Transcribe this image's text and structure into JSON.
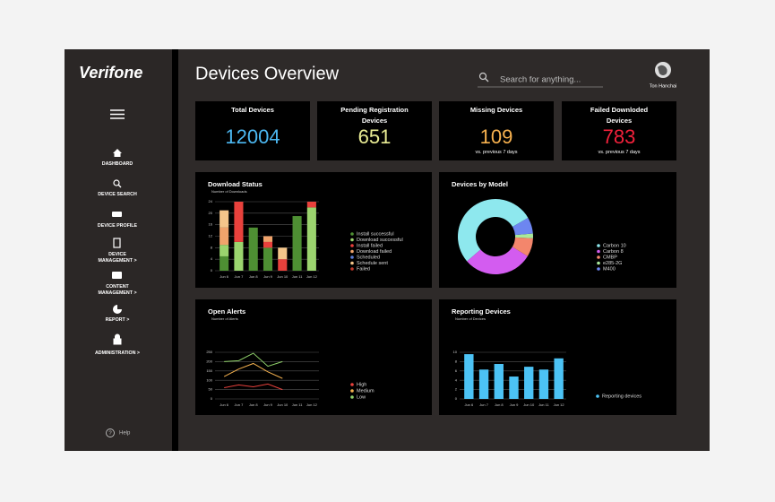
{
  "sidebar": {
    "logo": "Verifone",
    "nav": [
      "DASHBOARD",
      "DEVICE SEARCH",
      "DEVICE PROFILE",
      "DEVICE MANAGEMENT >",
      "CONTENT MANAGEMENT >",
      "REPORT >",
      "ADMINISTRATION >"
    ],
    "help": "Help"
  },
  "header": {
    "title": "Devices Overview",
    "search_placeholder": "Search for anything...",
    "user": "Ton Hanchai"
  },
  "kpis": [
    {
      "label": "Total Devices",
      "value": 12004,
      "color": "#4cb8f2"
    },
    {
      "label": "Pending Registration Devices",
      "value": 651,
      "color": "#e9ec94"
    },
    {
      "label": "Missing Devices",
      "value": 109,
      "note": "vs. previous 7 days",
      "color": "#f7b14f"
    },
    {
      "label": "Failed Downloded Devices",
      "value": 783,
      "note": "vs. previous 7 days",
      "color": "#f2213b"
    }
  ],
  "chart_data": [
    {
      "type": "bar",
      "stacked": true,
      "title": "Download Status",
      "subtitle": "Number of Downloads",
      "categories": [
        "Jun 6",
        "Jun 7",
        "Jun 8",
        "Jun 9",
        "Jun 10",
        "Jun 11",
        "Jun 12"
      ],
      "series": [
        {
          "name": "Install successful",
          "color": "#4e8f33",
          "values": [
            5,
            0,
            15,
            8,
            0,
            19,
            0
          ]
        },
        {
          "name": "Download successful",
          "color": "#9bd46e",
          "values": [
            4,
            10,
            0,
            0,
            0,
            0,
            22
          ]
        },
        {
          "name": "Install failed",
          "color": "#e8413c",
          "values": [
            0,
            14,
            0,
            2,
            4,
            0,
            2
          ]
        },
        {
          "name": "Download failed",
          "color": "#f0a36b",
          "values": [
            6,
            0,
            0,
            2,
            0,
            0,
            0
          ]
        },
        {
          "name": "Scheduled",
          "color": "#5b7bd5",
          "values": [
            0,
            0,
            0,
            0,
            0,
            0,
            0
          ]
        },
        {
          "name": "Schedule sent",
          "color": "#f5c68a",
          "values": [
            6,
            0,
            0,
            0,
            4,
            0,
            0
          ]
        },
        {
          "name": "Failed",
          "color": "#c0392b",
          "values": [
            0,
            0,
            0,
            0,
            0,
            0,
            0
          ]
        }
      ],
      "ylim": [
        0,
        24
      ],
      "yticks": [
        0,
        4,
        8,
        12,
        16,
        20,
        24
      ],
      "grid": true,
      "legend": "right"
    },
    {
      "type": "pie",
      "donut": true,
      "title": "Devices by Model",
      "categories": [
        "Carbon 10",
        "Carbon 8",
        "CMBP",
        "e285-2G",
        "M400"
      ],
      "values": [
        53,
        30,
        8,
        2,
        7
      ],
      "colors": [
        "#8ee8ee",
        "#d35cf0",
        "#f3866c",
        "#a9e89a",
        "#6d86f0"
      ],
      "legend": "right"
    },
    {
      "type": "line",
      "title": "Open Alerts",
      "subtitle": "Number of Alerts",
      "categories": [
        "Jun 6",
        "Jun 7",
        "Jun 8",
        "Jun 9",
        "Jun 10",
        "Jun 11",
        "Jun 12"
      ],
      "series": [
        {
          "name": "High",
          "color": "#e8413c",
          "values": [
            60,
            75,
            65,
            80,
            50,
            null,
            null
          ]
        },
        {
          "name": "Medium",
          "color": "#f3b04e",
          "values": [
            120,
            160,
            190,
            145,
            110,
            null,
            null
          ]
        },
        {
          "name": "Low",
          "color": "#8fd06a",
          "values": [
            200,
            205,
            245,
            175,
            200,
            null,
            null
          ]
        }
      ],
      "ylim": [
        0,
        250
      ],
      "yticks": [
        0,
        50,
        100,
        150,
        200,
        250
      ],
      "grid": true,
      "legend": "right"
    },
    {
      "type": "bar",
      "title": "Reporting Devices",
      "subtitle": "Number of Devices",
      "categories": [
        "Jun 6",
        "Jun 7",
        "Jun 8",
        "Jun 9",
        "Jun 10",
        "Jun 11",
        "Jun 12"
      ],
      "series": [
        {
          "name": "Reporting devices",
          "color": "#4cc3f5",
          "values": [
            9.6,
            6.3,
            7.5,
            4.8,
            6.9,
            6.3,
            8.7
          ]
        }
      ],
      "ylim": [
        0,
        10
      ],
      "yticks": [
        0,
        2,
        4,
        6,
        8,
        10
      ],
      "grid": true,
      "legend": "right"
    }
  ]
}
